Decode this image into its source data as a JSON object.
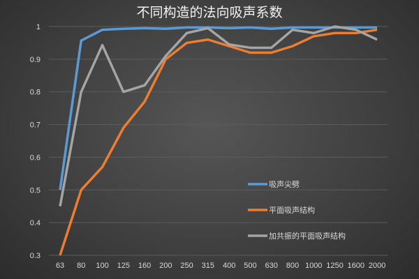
{
  "chart_data": {
    "type": "line",
    "title": "不同构造的法向吸声系数",
    "xlabel": "",
    "ylabel": "",
    "categories": [
      "63",
      "80",
      "100",
      "125",
      "160",
      "200",
      "250",
      "315",
      "400",
      "500",
      "630",
      "800",
      "1000",
      "1250",
      "1600",
      "2000"
    ],
    "ylim": [
      0.3,
      1
    ],
    "yticks": [
      "0.3",
      "0.4",
      "0.5",
      "0.6",
      "0.7",
      "0.8",
      "0.9",
      "1"
    ],
    "grid": true,
    "legend_position": "right",
    "series": [
      {
        "name": "吸声尖劈",
        "color": "#5b9bd5",
        "values": [
          0.5,
          0.957,
          0.99,
          0.993,
          0.995,
          0.993,
          0.997,
          0.997,
          0.995,
          0.997,
          0.993,
          0.997,
          0.997,
          0.997,
          0.997,
          0.997
        ]
      },
      {
        "name": "平面吸声结构",
        "color": "#ed7d31",
        "values": [
          0.3,
          0.5,
          0.57,
          0.69,
          0.77,
          0.9,
          0.95,
          0.96,
          0.94,
          0.92,
          0.92,
          0.94,
          0.97,
          0.98,
          0.98,
          0.99
        ]
      },
      {
        "name": "加共振的平面吸声结构",
        "color": "#a5a5a5",
        "values": [
          0.45,
          0.8,
          0.943,
          0.8,
          0.82,
          0.91,
          0.98,
          0.995,
          0.945,
          0.935,
          0.935,
          0.99,
          0.98,
          1.0,
          0.99,
          0.96
        ]
      }
    ]
  }
}
